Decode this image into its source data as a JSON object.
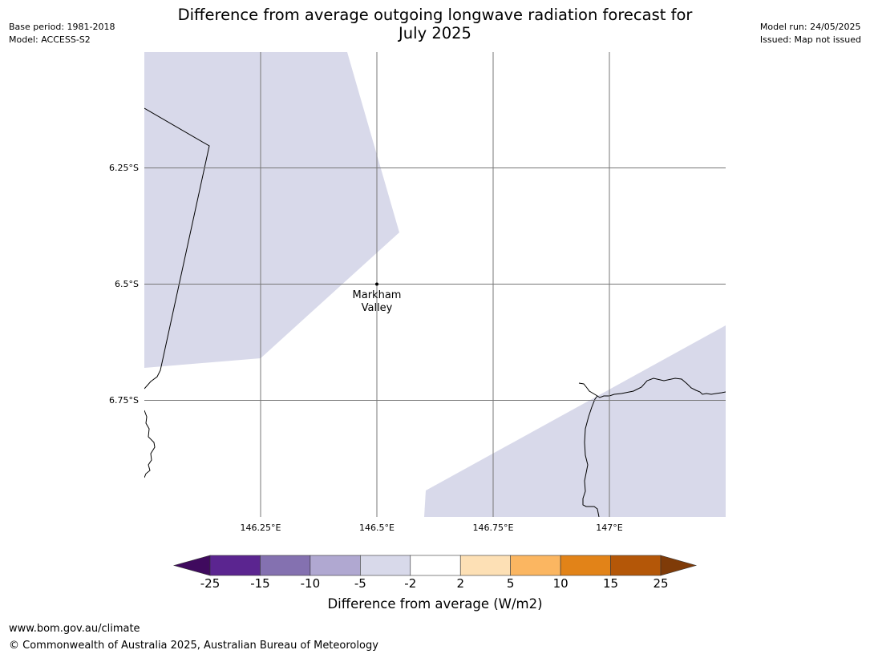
{
  "meta": {
    "base_period": "Base period: 1981-2018",
    "model": "Model: ACCESS-S2",
    "model_run": "Model run: 24/05/2025",
    "issued": "Issued: Map not issued"
  },
  "title": {
    "line1": "Difference from average outgoing longwave radiation forecast for",
    "line2": "July 2025"
  },
  "map": {
    "lat_ticks": [
      "6.25°S",
      "6.5°S",
      "6.75°S"
    ],
    "lon_ticks": [
      "146.25°E",
      "146.5°E",
      "146.75°E",
      "147°E"
    ],
    "place": {
      "name_line1": "Markham",
      "name_line2": "Valley",
      "lon": 146.5,
      "lat": -6.5
    },
    "fill_color": "#d8d9ea"
  },
  "colorbar": {
    "label": "Difference from average (W/m2)",
    "ticks": [
      "-25",
      "-15",
      "-10",
      "-5",
      "-2",
      "2",
      "5",
      "10",
      "15",
      "25"
    ],
    "colors": [
      "#3f0a5e",
      "#5b2590",
      "#8471b0",
      "#b0a8d1",
      "#d8d9ea",
      "#ffffff",
      "#fde0b5",
      "#fbb661",
      "#e28318",
      "#b45708",
      "#7f3b08"
    ]
  },
  "footer": {
    "url": "www.bom.gov.au/climate",
    "copyright": "© Commonwealth of Australia 2025, Australian Bureau of Meteorology"
  }
}
